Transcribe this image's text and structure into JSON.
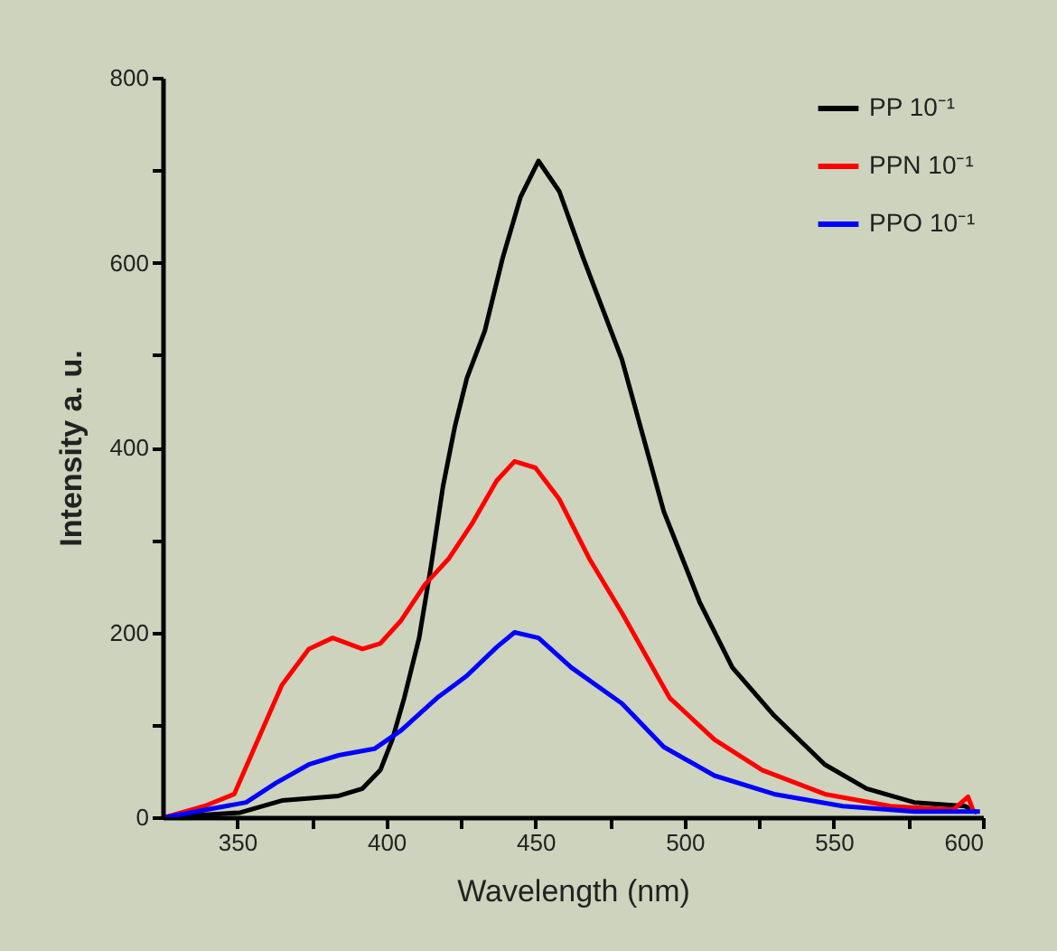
{
  "chart_data": {
    "type": "line",
    "xlabel": "Wavelength (nm)",
    "ylabel": "Intensity a. u.",
    "xlim": [
      325,
      600
    ],
    "ylim": [
      0,
      800
    ],
    "xticks": [
      350,
      {
        "value": 375,
        "label": null
      },
      400,
      {
        "value": 425,
        "label": null
      },
      450,
      {
        "value": 475,
        "label": null
      },
      500,
      {
        "value": 525,
        "label": null
      },
      550,
      {
        "value": 575,
        "label": null
      },
      600
    ],
    "yticks": [
      0,
      {
        "value": 100,
        "label": null
      },
      200,
      {
        "value": 300,
        "label": null
      },
      400,
      {
        "value": 500,
        "label": null
      },
      600,
      {
        "value": 700,
        "label": null
      },
      800
    ],
    "grid": false,
    "legend": "top right",
    "line_style": "solid",
    "series": [
      {
        "name": "PP 10⁻¹",
        "color": "#000000",
        "x": [
          326,
          351,
          365,
          384,
          392,
          398,
          402,
          406,
          411,
          415,
          419,
          423,
          427,
          433,
          439,
          445,
          451,
          458,
          466,
          479,
          493,
          505,
          516,
          530,
          547,
          561,
          577,
          594,
          598
        ],
        "values": [
          0,
          5,
          18,
          23,
          31,
          51,
          84,
          129,
          194,
          272,
          358,
          423,
          475,
          526,
          605,
          671,
          710,
          677,
          605,
          495,
          331,
          233,
          162,
          110,
          57,
          31,
          16,
          12,
          5
        ]
      },
      {
        "name": "PPN 10⁻¹",
        "color": "#ff0000",
        "x": [
          326,
          339,
          349,
          357,
          365,
          374,
          382,
          392,
          398,
          405,
          413,
          421,
          429,
          437,
          443,
          450,
          458,
          468,
          479,
          495,
          510,
          526,
          547,
          569,
          590,
          595,
          597
        ],
        "values": [
          0,
          12,
          25,
          84,
          143,
          182,
          194,
          182,
          188,
          213,
          252,
          280,
          319,
          364,
          385,
          378,
          344,
          280,
          221,
          129,
          84,
          51,
          25,
          12,
          8,
          22,
          5
        ]
      },
      {
        "name": "PPO 10⁻¹",
        "color": "#0000ff",
        "x": [
          326,
          353,
          363,
          374,
          384,
          396,
          405,
          417,
          427,
          437,
          443,
          451,
          462,
          479,
          493,
          510,
          530,
          553,
          577,
          599
        ],
        "values": [
          0,
          16,
          37,
          57,
          67,
          74,
          94,
          129,
          153,
          184,
          200,
          194,
          162,
          123,
          76,
          45,
          25,
          12,
          6,
          6
        ]
      }
    ]
  }
}
